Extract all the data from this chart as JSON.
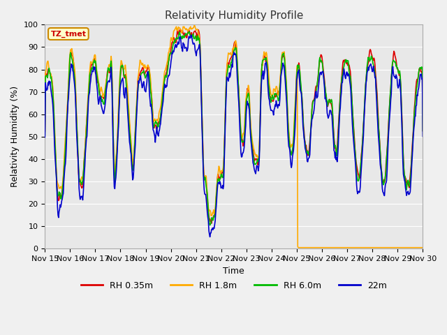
{
  "title": "Relativity Humidity Profile",
  "xlabel": "Time",
  "ylabel": "Relativity Humidity (%)",
  "ylim": [
    0,
    100
  ],
  "xlim": [
    0,
    15
  ],
  "x_tick_labels": [
    "Nov 15",
    "Nov 16",
    "Nov 17",
    "Nov 18",
    "Nov 19",
    "Nov 20",
    "Nov 21",
    "Nov 22",
    "Nov 23",
    "Nov 24",
    "Nov 25",
    "Nov 26",
    "Nov 27",
    "Nov 28",
    "Nov 29",
    "Nov 30"
  ],
  "colors": {
    "rh035": "#dd0000",
    "rh18": "#ffaa00",
    "rh60": "#00bb00",
    "rh22m": "#0000cc"
  },
  "legend_labels": [
    "RH 0.35m",
    "RH 1.8m",
    "RH 6.0m",
    "22m"
  ],
  "annotation_text": "TZ_tmet",
  "annotation_bg": "#ffffcc",
  "annotation_border": "#cc8800",
  "fig_bg": "#f0f0f0",
  "plot_bg": "#e8e8e8",
  "grid_color": "#ffffff",
  "title_color": "#333333",
  "linewidth": 1.2,
  "base_curve": [
    [
      0.0,
      78
    ],
    [
      0.15,
      80
    ],
    [
      0.3,
      75
    ],
    [
      0.5,
      23
    ],
    [
      0.7,
      26
    ],
    [
      0.85,
      53
    ],
    [
      1.0,
      86
    ],
    [
      1.1,
      87
    ],
    [
      1.2,
      75
    ],
    [
      1.35,
      30
    ],
    [
      1.5,
      28
    ],
    [
      1.65,
      55
    ],
    [
      1.8,
      80
    ],
    [
      1.9,
      82
    ],
    [
      2.0,
      85
    ],
    [
      2.1,
      75
    ],
    [
      2.2,
      68
    ],
    [
      2.35,
      67
    ],
    [
      2.5,
      80
    ],
    [
      2.6,
      81
    ],
    [
      2.65,
      85
    ],
    [
      2.75,
      29
    ],
    [
      2.85,
      41
    ],
    [
      3.0,
      81
    ],
    [
      3.1,
      81
    ],
    [
      3.15,
      76
    ],
    [
      3.2,
      80
    ],
    [
      3.35,
      56
    ],
    [
      3.5,
      33
    ],
    [
      3.7,
      77
    ],
    [
      3.85,
      80
    ],
    [
      4.0,
      78
    ],
    [
      4.15,
      80
    ],
    [
      4.3,
      55
    ],
    [
      4.5,
      56
    ],
    [
      4.6,
      61
    ],
    [
      4.75,
      78
    ],
    [
      4.85,
      79
    ],
    [
      5.0,
      90
    ],
    [
      5.15,
      95
    ],
    [
      5.25,
      97
    ],
    [
      5.35,
      97
    ],
    [
      5.5,
      96
    ],
    [
      5.65,
      95
    ],
    [
      5.75,
      97
    ],
    [
      5.85,
      96
    ],
    [
      5.95,
      96
    ],
    [
      6.0,
      96
    ],
    [
      6.15,
      95
    ],
    [
      6.3,
      32
    ],
    [
      6.4,
      31
    ],
    [
      6.5,
      14
    ],
    [
      6.6,
      13
    ],
    [
      6.75,
      14
    ],
    [
      6.85,
      32
    ],
    [
      7.0,
      33
    ],
    [
      7.1,
      33
    ],
    [
      7.2,
      79
    ],
    [
      7.3,
      84
    ],
    [
      7.4,
      85
    ],
    [
      7.5,
      90
    ],
    [
      7.6,
      91
    ],
    [
      7.7,
      68
    ],
    [
      7.8,
      47
    ],
    [
      7.9,
      47
    ],
    [
      8.0,
      68
    ],
    [
      8.05,
      70
    ],
    [
      8.1,
      72
    ],
    [
      8.15,
      57
    ],
    [
      8.25,
      43
    ],
    [
      8.35,
      40
    ],
    [
      8.5,
      38
    ],
    [
      8.6,
      82
    ],
    [
      8.7,
      85
    ],
    [
      8.8,
      85
    ],
    [
      8.9,
      70
    ],
    [
      9.0,
      67
    ],
    [
      9.1,
      68
    ],
    [
      9.2,
      70
    ],
    [
      9.3,
      68
    ],
    [
      9.4,
      85
    ],
    [
      9.5,
      88
    ],
    [
      9.6,
      70
    ],
    [
      9.65,
      55
    ],
    [
      9.75,
      44
    ],
    [
      9.85,
      43
    ],
    [
      9.95,
      65
    ],
    [
      10.0,
      80
    ],
    [
      10.1,
      82
    ],
    [
      10.2,
      68
    ],
    [
      10.3,
      50
    ],
    [
      10.4,
      44
    ],
    [
      10.5,
      43
    ],
    [
      10.6,
      65
    ],
    [
      10.7,
      68
    ],
    [
      10.8,
      72
    ],
    [
      10.9,
      85
    ],
    [
      11.0,
      87
    ],
    [
      11.1,
      75
    ],
    [
      11.2,
      65
    ],
    [
      11.3,
      67
    ],
    [
      11.4,
      65
    ],
    [
      11.5,
      45
    ],
    [
      11.6,
      44
    ],
    [
      11.7,
      65
    ],
    [
      11.8,
      80
    ],
    [
      11.9,
      85
    ],
    [
      12.0,
      85
    ],
    [
      12.1,
      80
    ],
    [
      12.2,
      65
    ],
    [
      12.3,
      45
    ],
    [
      12.4,
      33
    ],
    [
      12.5,
      32
    ],
    [
      12.6,
      48
    ],
    [
      12.7,
      68
    ],
    [
      12.8,
      83
    ],
    [
      12.9,
      87
    ],
    [
      13.0,
      85
    ],
    [
      13.1,
      82
    ],
    [
      13.2,
      65
    ],
    [
      13.3,
      44
    ],
    [
      13.4,
      30
    ],
    [
      13.5,
      29
    ],
    [
      13.6,
      48
    ],
    [
      13.7,
      68
    ],
    [
      13.8,
      84
    ],
    [
      13.9,
      85
    ],
    [
      14.0,
      80
    ],
    [
      14.1,
      80
    ],
    [
      14.15,
      65
    ],
    [
      14.25,
      34
    ],
    [
      14.35,
      30
    ],
    [
      14.5,
      29
    ],
    [
      14.6,
      48
    ],
    [
      14.7,
      68
    ],
    [
      14.85,
      80
    ],
    [
      15.0,
      80
    ]
  ],
  "orange_zero_start": 10.0
}
